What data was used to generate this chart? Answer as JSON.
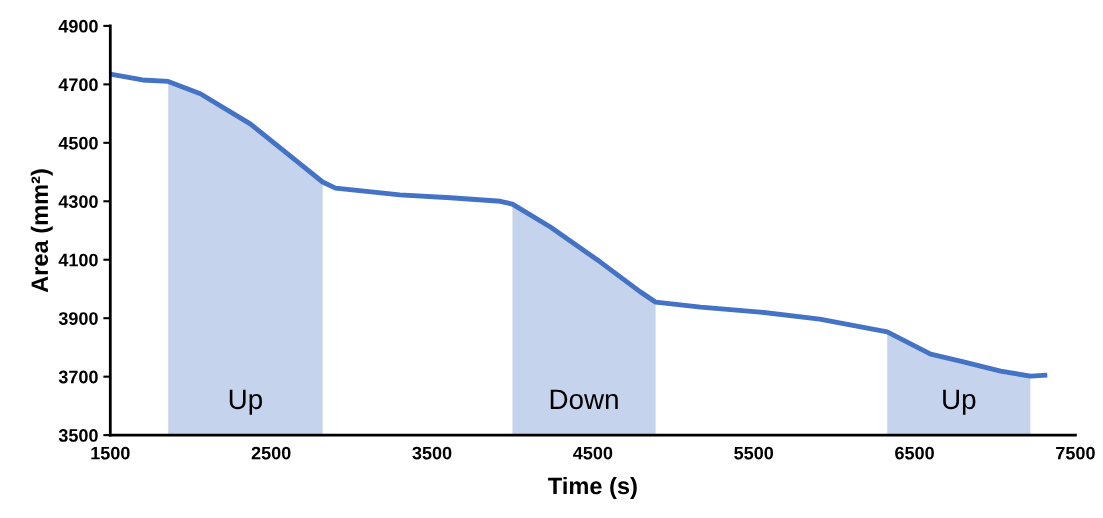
{
  "chart_data": {
    "type": "line",
    "xlabel": "Time (s)",
    "ylabel": "Area (mm²)",
    "xlim": [
      1500,
      7500
    ],
    "xticks": [
      1500,
      2500,
      3500,
      4500,
      5500,
      6500,
      7500
    ],
    "ylim": [
      3500,
      4900
    ],
    "yticks": [
      3500,
      3700,
      3900,
      4100,
      4300,
      4500,
      4700,
      4900
    ],
    "grid": false,
    "legend": false,
    "marker": "none",
    "line_style": "solid",
    "series": [
      {
        "type": "area",
        "name": "Up",
        "color": "#c5d3ec",
        "x": [
          1860,
          2060,
          2370,
          2680,
          2820
        ],
        "values": [
          4710,
          4668,
          4565,
          4428,
          4366
        ]
      },
      {
        "type": "area",
        "name": "Down",
        "color": "#c5d3ec",
        "x": [
          4000,
          4236,
          4547,
          4795,
          4890
        ],
        "values": [
          4290,
          4212,
          4092,
          3990,
          3955
        ]
      },
      {
        "type": "area",
        "name": "Up",
        "color": "#c5d3ec",
        "x": [
          6330,
          6600,
          6785,
          7035,
          7220
        ],
        "values": [
          3853,
          3777,
          3753,
          3719,
          3702
        ]
      },
      {
        "color": "#4472c4",
        "x": [
          1500,
          1700,
          1860,
          2060,
          2370,
          2680,
          2820,
          2900,
          3300,
          3615,
          3925,
          4000,
          4236,
          4547,
          4795,
          4890,
          5170,
          5540,
          5910,
          6330,
          6600,
          6785,
          7035,
          7220,
          7310
        ],
        "values": [
          4735,
          4715,
          4710,
          4668,
          4565,
          4428,
          4366,
          4345,
          4322,
          4312,
          4300,
          4290,
          4212,
          4092,
          3990,
          3955,
          3938,
          3921,
          3897,
          3853,
          3777,
          3753,
          3719,
          3702,
          3705
        ]
      }
    ]
  }
}
